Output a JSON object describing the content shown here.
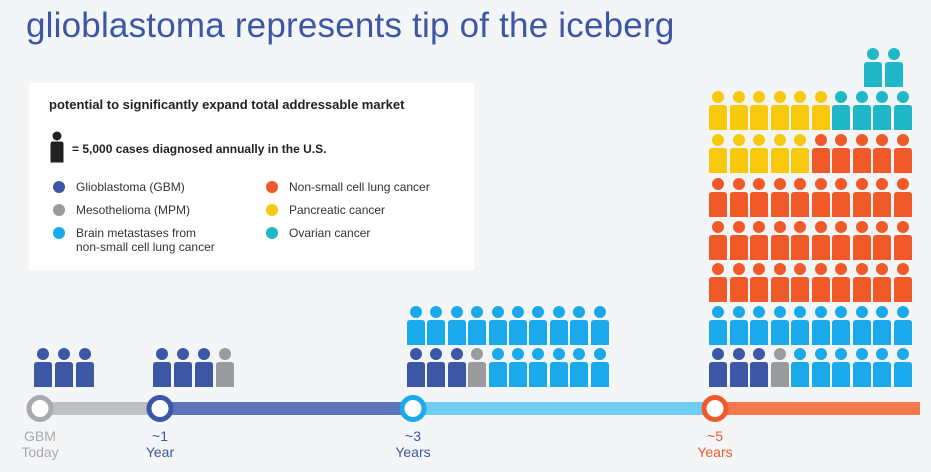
{
  "title": "glioblastoma represents tip of the iceberg",
  "legend": {
    "heading": "potential to significantly expand total addressable market",
    "key_text": "= 5,000 cases diagnosed annually in the U.S.",
    "items": [
      {
        "label": "Glioblastoma (GBM)",
        "color": "#3b57a6"
      },
      {
        "label": "Mesothelioma (MPM)",
        "color": "#9a9b9d"
      },
      {
        "label": "Brain metastases from non-small cell lung cancer",
        "label_line1": "Brain metastases from",
        "label_line2": "non-small cell lung cancer",
        "color": "#1aa9ea"
      },
      {
        "label": "Non-small cell lung cancer",
        "color": "#f05a28"
      },
      {
        "label": "Pancreatic cancer",
        "color": "#f7c80b"
      },
      {
        "label": "Ovarian cancer",
        "color": "#20b8c8"
      }
    ]
  },
  "timeline": {
    "stages": [
      {
        "line1": "GBM",
        "line2": "Today",
        "color": "#a9aaac"
      },
      {
        "line1": "~1",
        "line2": "Year",
        "color": "#3b57a6"
      },
      {
        "line1": "~3",
        "line2": "Years",
        "color": "#3b57a6"
      },
      {
        "line1": "~5",
        "line2": "Years",
        "color": "#f05a28"
      }
    ],
    "segment_colors": [
      "#bfc0c2",
      "#5d74bb",
      "#6fcdf4",
      "#f47a4d"
    ]
  },
  "people_counts": {
    "today": {
      "glioblastoma": 3
    },
    "year_1": {
      "glioblastoma": 3,
      "mesothelioma": 1
    },
    "year_3": {
      "glioblastoma": 3,
      "mesothelioma": 1,
      "brain_metastases": 16
    },
    "year_5": {
      "glioblastoma": 3,
      "mesothelioma": 1,
      "brain_metastases": 16,
      "non_small_cell_lung_cancer": 35,
      "pancreatic_cancer": 11,
      "ovarian_cancer": 6
    }
  },
  "colors": {
    "glioblastoma": "#3b57a6",
    "mesothelioma": "#9a9b9d",
    "brain_metastases": "#1aa9ea",
    "non_small_cell_lung_cancer": "#f05a28",
    "pancreatic_cancer": "#f7c80b",
    "ovarian_cancer": "#20b8c8",
    "key_person": "#222222"
  }
}
